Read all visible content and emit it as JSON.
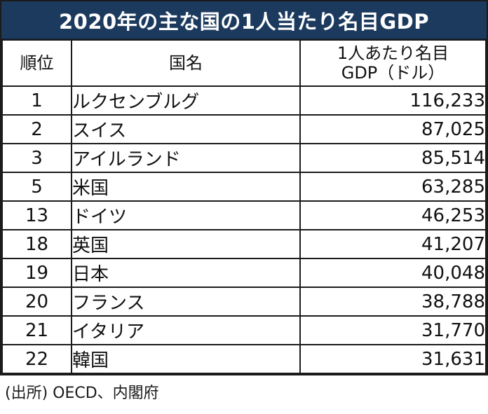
{
  "title": {
    "text": "2020年の主な国の1人当たり名目GDP"
  },
  "table": {
    "headers": {
      "rank": "順位",
      "country": "国名",
      "gdp_line1": "1人あたり名目",
      "gdp_line2": "GDP（ドル）"
    },
    "rows": [
      {
        "rank": "1",
        "country": "ルクセンブルグ",
        "value": "116,233"
      },
      {
        "rank": "2",
        "country": "スイス",
        "value": "87,025"
      },
      {
        "rank": "3",
        "country": "アイルランド",
        "value": "85,514"
      },
      {
        "rank": "5",
        "country": "米国",
        "value": "63,285"
      },
      {
        "rank": "13",
        "country": "ドイツ",
        "value": "46,253"
      },
      {
        "rank": "18",
        "country": "英国",
        "value": "41,207"
      },
      {
        "rank": "19",
        "country": "日本",
        "value": "40,048"
      },
      {
        "rank": "20",
        "country": "フランス",
        "value": "38,788"
      },
      {
        "rank": "21",
        "country": "イタリア",
        "value": "31,770"
      },
      {
        "rank": "22",
        "country": "韓国",
        "value": "31,631"
      }
    ]
  },
  "footer": {
    "source": "(出所) OECD、内閣府"
  },
  "colors": {
    "title_bg": "#1c3a5e",
    "title_text": "#ffffff",
    "border": "#1b1b1b",
    "body_text": "#111111"
  },
  "chart_data": {
    "type": "table",
    "title": "2020年の主な国の1人当たり名目GDP",
    "columns": [
      "順位",
      "国名",
      "1人あたり名目GDP（ドル）"
    ],
    "rows": [
      [
        "1",
        "ルクセンブルグ",
        116233
      ],
      [
        "2",
        "スイス",
        87025
      ],
      [
        "3",
        "アイルランド",
        85514
      ],
      [
        "5",
        "米国",
        63285
      ],
      [
        "13",
        "ドイツ",
        46253
      ],
      [
        "18",
        "英国",
        41207
      ],
      [
        "19",
        "日本",
        40048
      ],
      [
        "20",
        "フランス",
        38788
      ],
      [
        "21",
        "イタリア",
        31770
      ],
      [
        "22",
        "韓国",
        31631
      ]
    ],
    "source": "(出所) OECD、内閣府"
  }
}
